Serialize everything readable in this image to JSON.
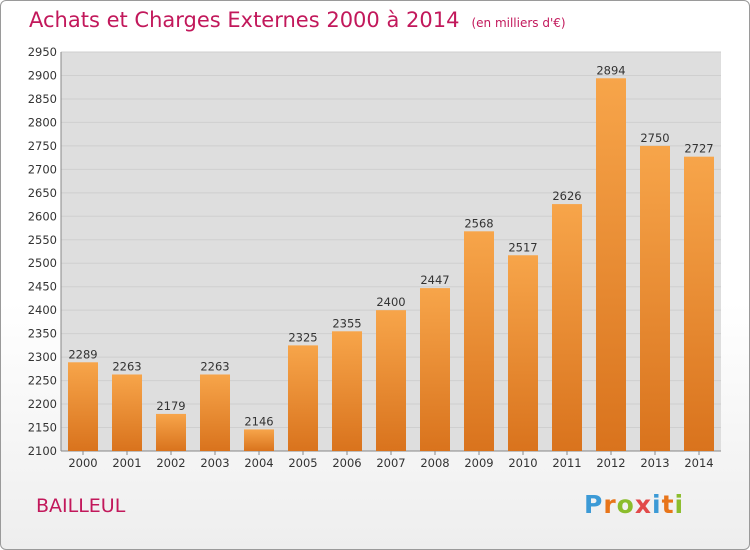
{
  "title": "Achats et Charges Externes 2000 à 2014",
  "subtitle": "(en milliers d'€)",
  "location": "BAILLEUL",
  "brand": {
    "text": "Proxiti",
    "colors": [
      "#3c9ad6",
      "#e8751a",
      "#8bbd2c",
      "#e24a4a",
      "#3c9ad6",
      "#e8751a",
      "#8bbd2c"
    ]
  },
  "colors": {
    "title": "#c2185b",
    "bar_light": "#f7a54a",
    "bar_dark": "#d9731d",
    "grid": "#cfcfcf",
    "plot_bg": "#dedede"
  },
  "chart_data": {
    "type": "bar",
    "categories": [
      "2000",
      "2001",
      "2002",
      "2003",
      "2004",
      "2005",
      "2006",
      "2007",
      "2008",
      "2009",
      "2010",
      "2011",
      "2012",
      "2013",
      "2014"
    ],
    "values": [
      2289,
      2263,
      2179,
      2263,
      2146,
      2325,
      2355,
      2400,
      2447,
      2568,
      2517,
      2626,
      2894,
      2750,
      2727
    ],
    "ylim": [
      2100,
      2950
    ],
    "yticks": [
      2100,
      2150,
      2200,
      2250,
      2300,
      2350,
      2400,
      2450,
      2500,
      2550,
      2600,
      2650,
      2700,
      2750,
      2800,
      2850,
      2900,
      2950
    ],
    "grid": true,
    "xlabel": "",
    "ylabel": ""
  }
}
